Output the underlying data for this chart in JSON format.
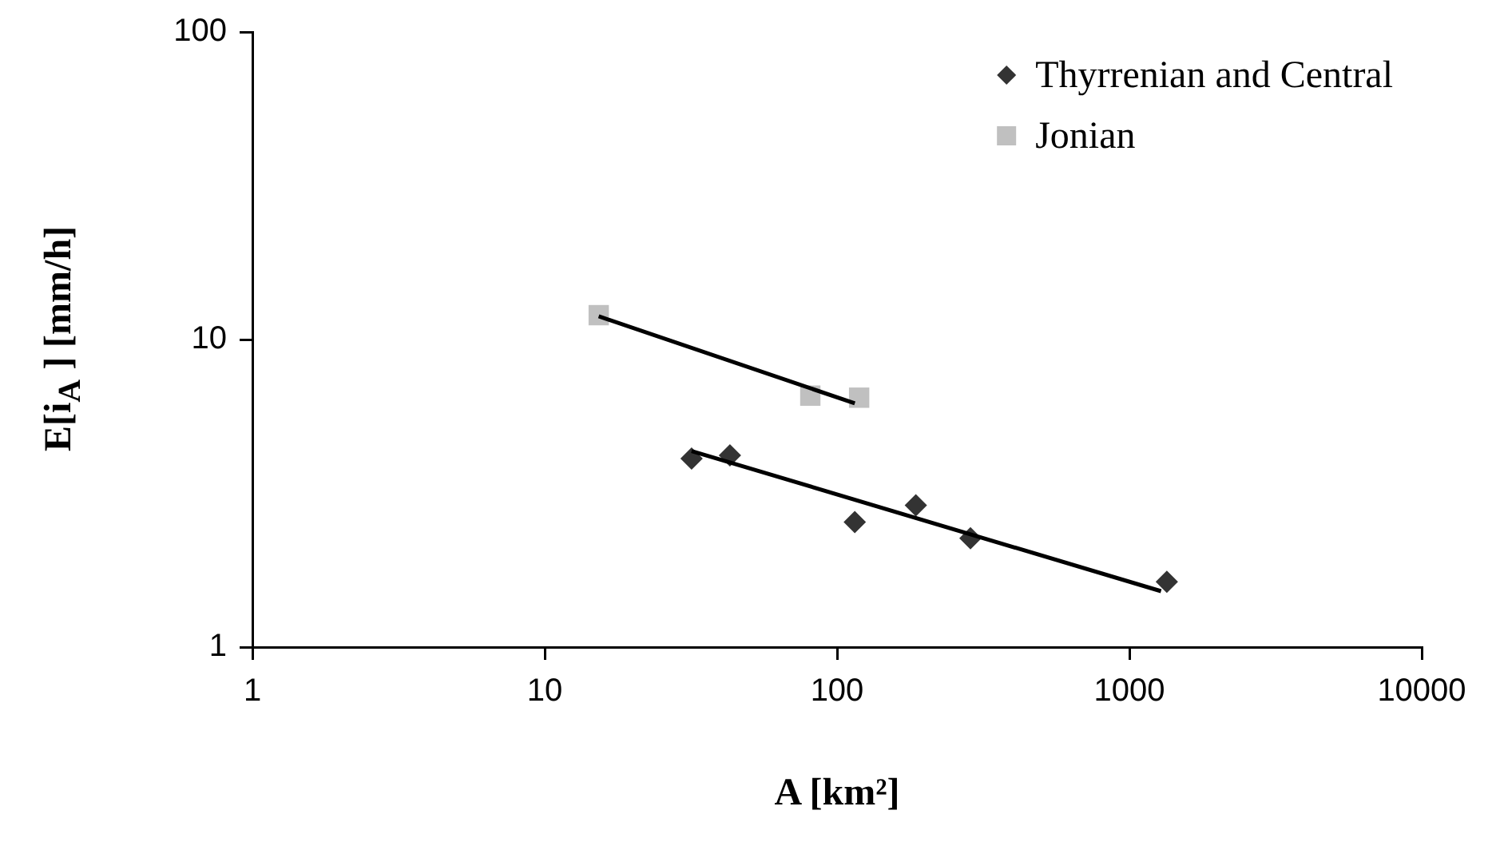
{
  "chart_data": {
    "type": "scatter",
    "xlabel": "A  [km²]",
    "ylabel": "E[i$_{A}$ ] [mm/h]",
    "log": "xy",
    "xlim": [
      1,
      10000
    ],
    "xticks": [
      1,
      10,
      100,
      1000,
      10000
    ],
    "ylim": [
      1,
      100
    ],
    "yticks": [
      1,
      10,
      100
    ],
    "grid": false,
    "legend": "top right",
    "series": [
      {
        "name": "Thyrrenian and Central",
        "color": "#333333",
        "marker": "diamond",
        "x": [
          31.8,
          43,
          115,
          186,
          286,
          1343
        ],
        "values": [
          4.1,
          4.2,
          2.55,
          2.89,
          2.26,
          1.63
        ]
      },
      {
        "name": "Jonian",
        "color": "#c0c0c0",
        "marker": "square",
        "x": [
          15.3,
          81,
          119
        ],
        "values": [
          12.0,
          6.57,
          6.47
        ]
      },
      {
        "type": "line",
        "color": "#000000",
        "marker": "none",
        "x": [
          31.8,
          1283
        ],
        "values": [
          4.34,
          1.52
        ]
      },
      {
        "type": "line",
        "color": "#000000",
        "marker": "none",
        "x": [
          15.3,
          115
        ],
        "values": [
          11.9,
          6.2
        ]
      }
    ]
  }
}
